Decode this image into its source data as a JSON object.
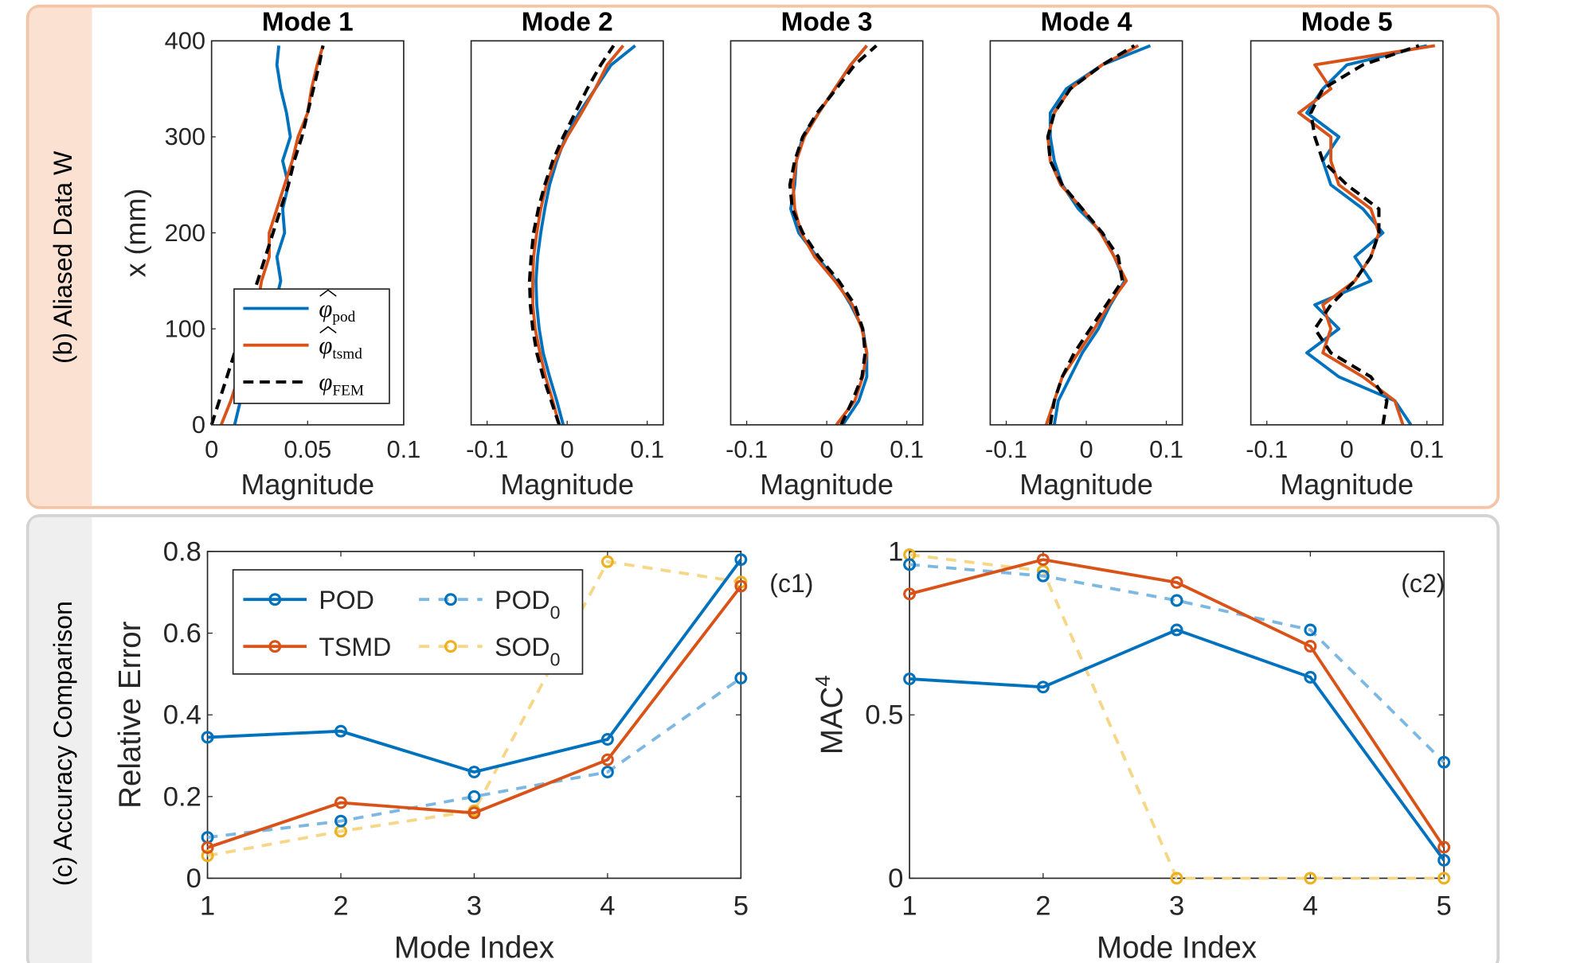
{
  "colors": {
    "pod": "#0072BD",
    "tsmd": "#D95319",
    "fem": "#000000",
    "pod0": "#7DB8E3",
    "sod0": "#F5D787",
    "sod0_marker": "#EDB120",
    "top_border": "#F4C4A6",
    "top_band": "#FBE1D2",
    "bottom_border": "#D3D3D3",
    "bottom_band": "#EFEFEF"
  },
  "panels": {
    "top_label": "(b) Aliased Data W",
    "bottom_label": "(c) Accuracy Comparison"
  },
  "chart_data": [
    {
      "type": "line",
      "group": "mode-shapes",
      "ylabel": "x (mm)",
      "ylim": [
        0,
        400
      ],
      "yticks": [
        "0",
        "100",
        "200",
        "300",
        "400"
      ],
      "xlabel": "Magnitude",
      "legend": {
        "placement": "bottom-left of Mode 1",
        "entries": [
          "φ̂pod",
          "φ̂tsmd",
          "φFEM"
        ],
        "main": "φ",
        "subs": [
          "pod",
          "tsmd",
          "FEM"
        ]
      },
      "x_positions_mm": [
        0,
        25,
        50,
        75,
        100,
        125,
        150,
        175,
        200,
        225,
        250,
        275,
        300,
        325,
        350,
        375,
        395
      ],
      "modes": [
        {
          "title": "Mode 1",
          "xlim": [
            0,
            0.1
          ],
          "xticks": [
            "0",
            "0.05",
            "0.1"
          ],
          "xtickvals": [
            0,
            0.05,
            0.1
          ],
          "pod": [
            0.012,
            0.015,
            0.02,
            0.025,
            0.03,
            0.033,
            0.036,
            0.034,
            0.038,
            0.037,
            0.04,
            0.037,
            0.041,
            0.039,
            0.036,
            0.034,
            0.035
          ],
          "tsmd": [
            0.005,
            0.01,
            0.014,
            0.018,
            0.02,
            0.024,
            0.026,
            0.03,
            0.03,
            0.034,
            0.038,
            0.042,
            0.045,
            0.05,
            0.052,
            0.055,
            0.058
          ],
          "fem": [
            0,
            0.004,
            0.008,
            0.012,
            0.016,
            0.02,
            0.024,
            0.028,
            0.032,
            0.036,
            0.04,
            0.043,
            0.047,
            0.05,
            0.053,
            0.056,
            0.058
          ]
        },
        {
          "title": "Mode 2",
          "xlim": [
            -0.12,
            0.12
          ],
          "xticks": [
            "-0.1",
            "0",
            "0.1"
          ],
          "xtickvals": [
            -0.1,
            0,
            0.1
          ],
          "pod": [
            -0.005,
            -0.013,
            -0.022,
            -0.03,
            -0.035,
            -0.038,
            -0.039,
            -0.037,
            -0.033,
            -0.028,
            -0.022,
            -0.013,
            -0.002,
            0.015,
            0.035,
            0.055,
            0.085
          ],
          "tsmd": [
            -0.01,
            -0.018,
            -0.027,
            -0.034,
            -0.04,
            -0.043,
            -0.043,
            -0.042,
            -0.038,
            -0.033,
            -0.026,
            -0.015,
            0,
            0.018,
            0.035,
            0.05,
            0.07
          ],
          "fem": [
            -0.01,
            -0.02,
            -0.03,
            -0.038,
            -0.043,
            -0.046,
            -0.047,
            -0.045,
            -0.042,
            -0.036,
            -0.028,
            -0.018,
            -0.005,
            0.01,
            0.025,
            0.042,
            0.058
          ]
        },
        {
          "title": "Mode 3",
          "xlim": [
            -0.12,
            0.12
          ],
          "xticks": [
            "-0.1",
            "0",
            "0.1"
          ],
          "xtickvals": [
            -0.1,
            0,
            0.1
          ],
          "pod": [
            0.02,
            0.04,
            0.05,
            0.05,
            0.045,
            0.03,
            0.012,
            -0.012,
            -0.035,
            -0.045,
            -0.04,
            -0.038,
            -0.03,
            -0.01,
            0.01,
            0.03,
            0.05
          ],
          "tsmd": [
            0.012,
            0.035,
            0.045,
            0.05,
            0.044,
            0.032,
            0.01,
            -0.015,
            -0.032,
            -0.04,
            -0.042,
            -0.038,
            -0.028,
            -0.01,
            0.01,
            0.03,
            0.05
          ],
          "fem": [
            0.018,
            0.032,
            0.044,
            0.048,
            0.045,
            0.035,
            0.015,
            -0.01,
            -0.03,
            -0.043,
            -0.046,
            -0.04,
            -0.03,
            -0.012,
            0.012,
            0.035,
            0.062
          ]
        },
        {
          "title": "Mode 4",
          "xlim": [
            -0.12,
            0.12
          ],
          "xticks": [
            "-0.1",
            "0",
            "0.1"
          ],
          "xtickvals": [
            -0.1,
            0,
            0.1
          ],
          "pod": [
            -0.04,
            -0.035,
            -0.02,
            -0.005,
            0.015,
            0.03,
            0.048,
            0.035,
            0.02,
            -0.01,
            -0.03,
            -0.04,
            -0.045,
            -0.045,
            -0.025,
            0.02,
            0.08
          ],
          "tsmd": [
            -0.05,
            -0.04,
            -0.03,
            -0.01,
            0.01,
            0.028,
            0.05,
            0.035,
            0.018,
            -0.005,
            -0.032,
            -0.045,
            -0.048,
            -0.04,
            -0.02,
            0.02,
            0.065
          ],
          "fem": [
            -0.045,
            -0.04,
            -0.03,
            -0.015,
            0.005,
            0.025,
            0.045,
            0.04,
            0.02,
            -0.005,
            -0.03,
            -0.045,
            -0.048,
            -0.04,
            -0.02,
            0.02,
            0.06
          ]
        },
        {
          "title": "Mode 5",
          "xlim": [
            -0.12,
            0.12
          ],
          "xticks": [
            "-0.1",
            "0",
            "0.1"
          ],
          "xtickvals": [
            -0.1,
            0,
            0.1
          ],
          "pod": [
            0.08,
            0.06,
            -0.01,
            -0.05,
            -0.01,
            -0.04,
            0.03,
            0.01,
            0.045,
            0.02,
            -0.02,
            -0.03,
            -0.01,
            -0.05,
            -0.03,
            0,
            0.1
          ],
          "tsmd": [
            0.07,
            0.06,
            0.02,
            -0.03,
            -0.02,
            -0.03,
            0.01,
            0.03,
            0.04,
            0.03,
            -0.01,
            -0.02,
            -0.02,
            -0.06,
            -0.02,
            -0.04,
            0.11
          ],
          "fem": [
            0.045,
            0.05,
            0.03,
            -0.02,
            -0.04,
            -0.02,
            0.01,
            0.03,
            0.04,
            0.04,
            0,
            -0.03,
            -0.04,
            -0.045,
            -0.03,
            0.02,
            0.09
          ]
        }
      ]
    },
    {
      "type": "line",
      "tag": "(c1)",
      "xlabel": "Mode Index",
      "ylabel": "Relative Error",
      "xlim": [
        1,
        5
      ],
      "ylim": [
        0,
        0.8
      ],
      "xticks": [
        "1",
        "2",
        "3",
        "4",
        "5"
      ],
      "yticks": [
        "0",
        "0.2",
        "0.4",
        "0.6",
        "0.8"
      ],
      "categories": [
        1,
        2,
        3,
        4,
        5
      ],
      "legend": {
        "placement": "top-left",
        "entries": [
          "POD",
          "TSMD",
          "POD0",
          "SOD0"
        ]
      },
      "series": [
        {
          "name": "POD",
          "key": "pod",
          "style": "solid",
          "values": [
            0.345,
            0.36,
            0.26,
            0.34,
            0.78
          ]
        },
        {
          "name": "TSMD",
          "key": "tsmd",
          "style": "solid",
          "values": [
            0.075,
            0.185,
            0.16,
            0.29,
            0.715
          ]
        },
        {
          "name": "POD0",
          "key": "pod0",
          "style": "dashed",
          "values": [
            0.1,
            0.14,
            0.2,
            0.26,
            0.49
          ]
        },
        {
          "name": "SOD0",
          "key": "sod0",
          "style": "dashed",
          "values": [
            0.055,
            0.115,
            0.165,
            0.775,
            0.725
          ]
        }
      ]
    },
    {
      "type": "line",
      "tag": "(c2)",
      "xlabel": "Mode Index",
      "ylabel": "MAC",
      "ylabel_sup": "4",
      "xlim": [
        1,
        5
      ],
      "ylim": [
        0,
        1
      ],
      "xticks": [
        "1",
        "2",
        "3",
        "4",
        "5"
      ],
      "yticks": [
        "0",
        "0.5",
        "1"
      ],
      "categories": [
        1,
        2,
        3,
        4,
        5
      ],
      "series": [
        {
          "key": "pod",
          "style": "solid",
          "values": [
            0.61,
            0.585,
            0.76,
            0.615,
            0.055
          ]
        },
        {
          "key": "tsmd",
          "style": "solid",
          "values": [
            0.87,
            0.975,
            0.905,
            0.71,
            0.095
          ]
        },
        {
          "key": "pod0",
          "style": "dashed",
          "values": [
            0.96,
            0.925,
            0.85,
            0.76,
            0.355
          ]
        },
        {
          "key": "sod0",
          "style": "dashed",
          "values": [
            0.99,
            0.94,
            0,
            0,
            0
          ]
        }
      ]
    }
  ]
}
